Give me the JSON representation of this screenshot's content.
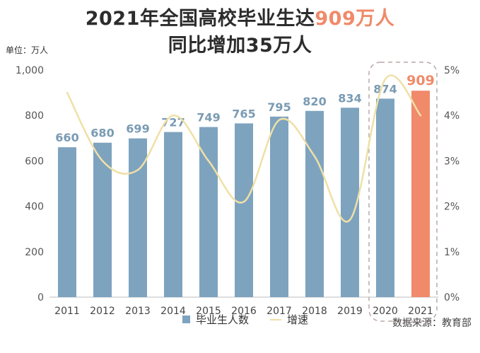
{
  "header": {
    "title_part1": "2021年全国高校毕业生达",
    "title_highlight": "909万人",
    "title_line2": "同比增加35万人"
  },
  "unit_label": "单位：万人",
  "source_label": "数据来源：教育部",
  "legend": {
    "bars": "毕业生人数",
    "line": "增速"
  },
  "colors": {
    "bar": "#7ea3bf",
    "highlight_bar": "#f08a6a",
    "line": "#efe0a6",
    "highlight_box": "#b9a9a5"
  },
  "chart_data": {
    "type": "bar",
    "categories": [
      "2011",
      "2012",
      "2013",
      "2014",
      "2015",
      "2016",
      "2017",
      "2018",
      "2019",
      "2020",
      "2021"
    ],
    "series": [
      {
        "name": "毕业生人数",
        "values": [
          660,
          680,
          699,
          727,
          749,
          765,
          795,
          820,
          834,
          874,
          909
        ],
        "axis": "left"
      },
      {
        "name": "增速",
        "type": "line",
        "values": [
          4.5,
          3.0,
          2.8,
          4.0,
          3.0,
          2.1,
          3.9,
          3.1,
          1.7,
          4.8,
          4.0
        ],
        "axis": "right"
      }
    ],
    "yleft": {
      "lim": [
        0,
        1000
      ],
      "ticks": [
        0,
        200,
        400,
        600,
        800,
        1000
      ],
      "tick_labels": [
        "0",
        "200",
        "400",
        "600",
        "800",
        "1,000"
      ]
    },
    "yright": {
      "lim": [
        0,
        5
      ],
      "ticks": [
        0,
        1,
        2,
        3,
        4,
        5
      ],
      "tick_labels": [
        "0%",
        "1%",
        "2%",
        "3%",
        "4%",
        "5%"
      ]
    },
    "highlight_categories": [
      "2020",
      "2021"
    ],
    "grid": false,
    "legend_position": "bottom"
  }
}
